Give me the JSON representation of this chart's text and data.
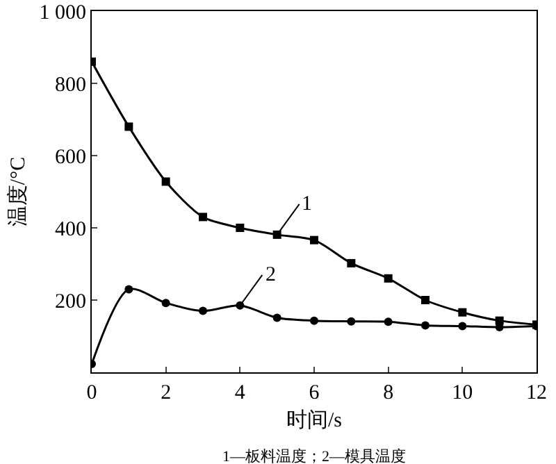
{
  "chart_data": {
    "type": "line",
    "xlabel": "时间/s",
    "ylabel": "温度/°C",
    "x": [
      0,
      1,
      2,
      3,
      4,
      5,
      6,
      7,
      8,
      9,
      10,
      11,
      12
    ],
    "series": [
      {
        "color": "#000000",
        "marker": "square",
        "values": [
          860,
          680,
          528,
          430,
          400,
          381,
          366,
          302,
          260,
          200,
          166,
          143,
          132
        ]
      },
      {
        "color": "#000000",
        "marker": "circle",
        "values": [
          23,
          230,
          192,
          170,
          185,
          151,
          143,
          141,
          140,
          130,
          128,
          125,
          128
        ]
      }
    ],
    "xlim": [
      0,
      12
    ],
    "xticks": [
      0,
      2,
      4,
      6,
      8,
      10,
      12
    ],
    "ylim": [
      0,
      1000
    ],
    "yticks": [
      200,
      400,
      600,
      800,
      {
        "value": 1000,
        "label": "1 000"
      }
    ],
    "annotations": [
      {
        "text": "1",
        "x": 5,
        "y": 381
      },
      {
        "text": "2",
        "x": 4,
        "y": 185
      },
      "1—板料温度；2—模具温度"
    ]
  }
}
